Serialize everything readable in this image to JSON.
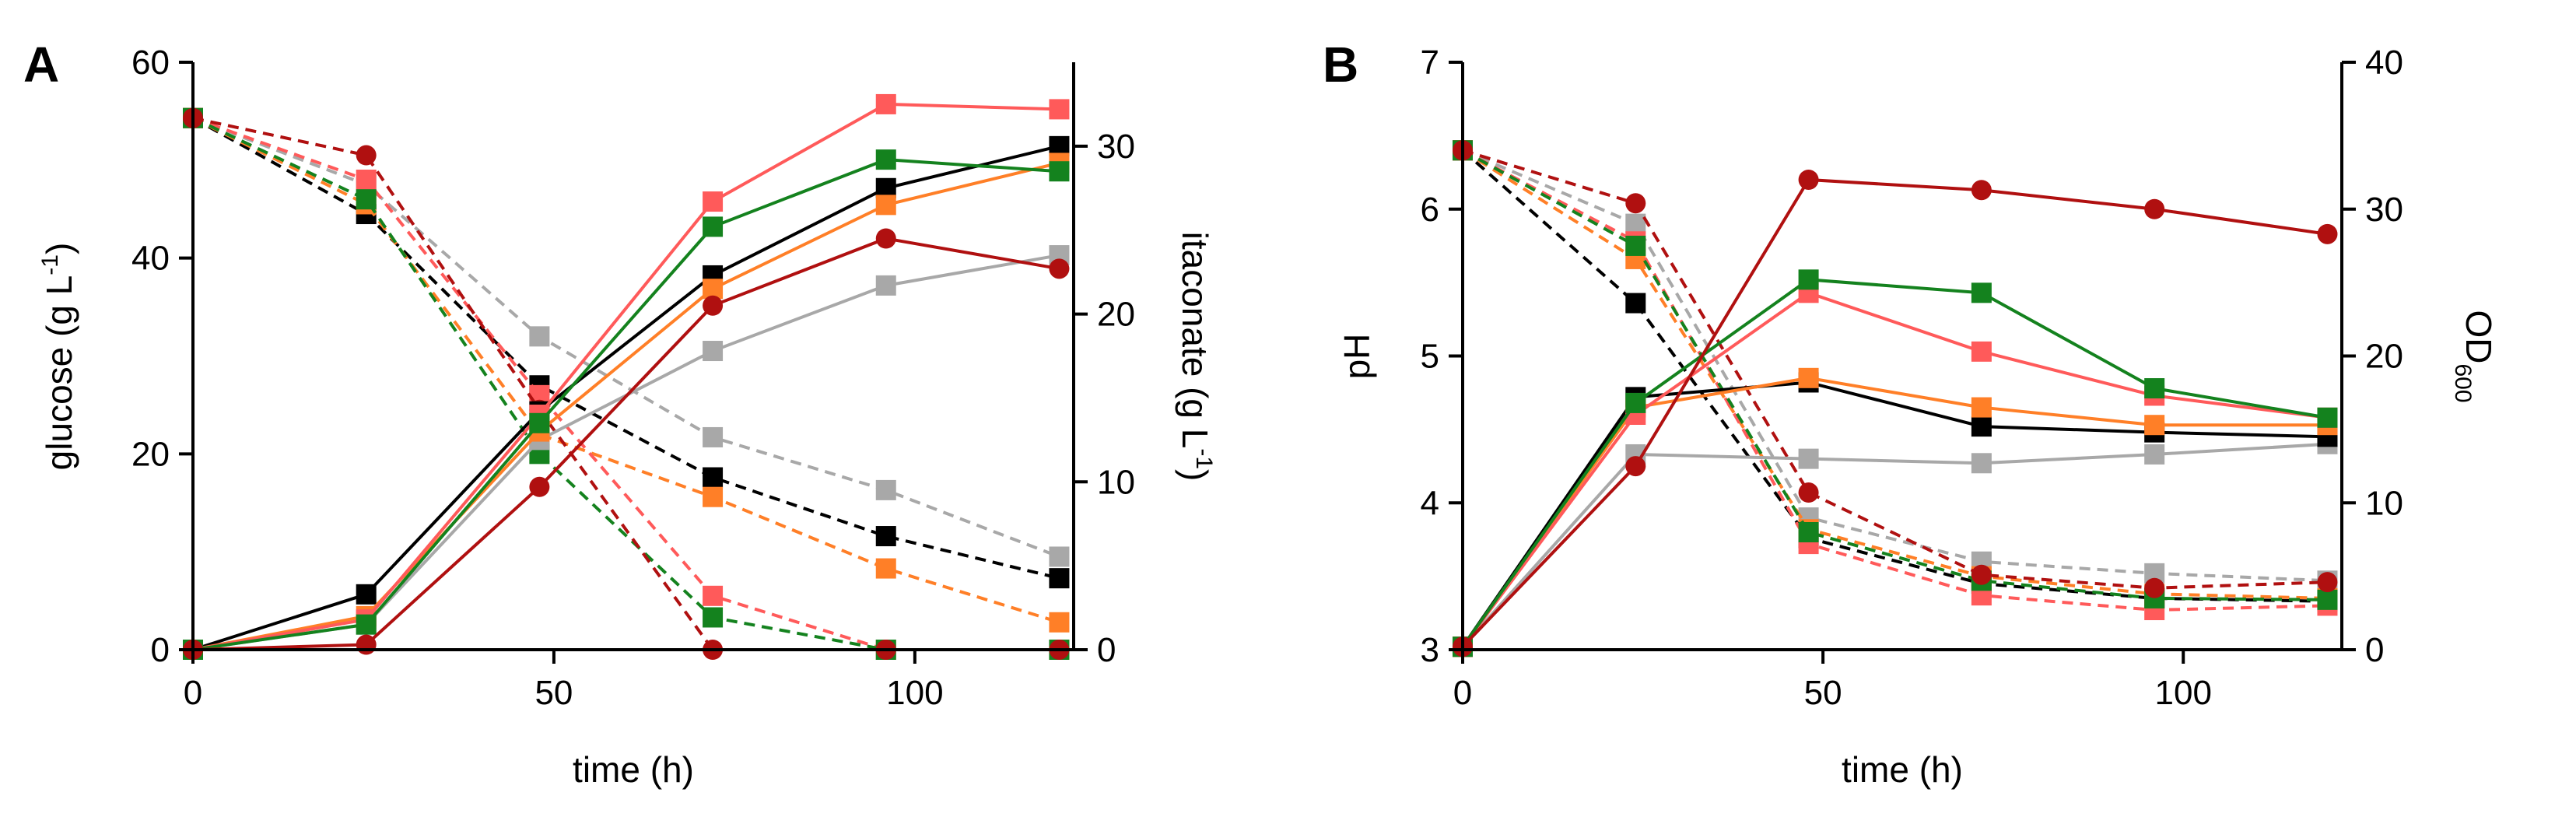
{
  "figure": {
    "colors": {
      "black": "#000000",
      "orange": "#ff7f27",
      "green": "#14821e",
      "lightred": "#ff5a5a",
      "darkred": "#b01010",
      "gray": "#a8a8a8"
    }
  },
  "chart_data": [
    {
      "type": "line",
      "panel_label": "A",
      "title": "",
      "xlabel": "time (h)",
      "ylabel_left": "glucose (g L",
      "ylabel_left_sup": "-1",
      "ylabel_left_end": ")",
      "ylabel_right": "itaconate (g L",
      "ylabel_right_sup": "-1",
      "ylabel_right_end": ")",
      "xlim": [
        0,
        122
      ],
      "ylim_left": [
        0,
        60
      ],
      "ylim_right": [
        0,
        35
      ],
      "xticks": [
        "0",
        "50",
        "100"
      ],
      "xtick_values": [
        0,
        50,
        100
      ],
      "yticks_left": [
        "0",
        "20",
        "40",
        "60"
      ],
      "ytick_left_values": [
        0,
        20,
        40,
        60
      ],
      "yticks_right": [
        "0",
        "10",
        "20",
        "30"
      ],
      "ytick_right_values": [
        0,
        10,
        20,
        30
      ],
      "x": [
        0,
        24,
        48,
        72,
        96,
        120
      ],
      "series": [
        {
          "name": "gray glucose",
          "color": "gray",
          "axis": "left",
          "dashed": true,
          "marker": "square",
          "values": [
            54.3,
            47.5,
            32,
            21.7,
            16.3,
            9.5
          ]
        },
        {
          "name": "black glucose",
          "color": "black",
          "axis": "left",
          "dashed": true,
          "marker": "square",
          "values": [
            54.3,
            44.5,
            27,
            17.6,
            11.6,
            7.3
          ]
        },
        {
          "name": "orange glucose",
          "color": "orange",
          "axis": "left",
          "dashed": true,
          "marker": "square",
          "values": [
            54.3,
            45.5,
            22,
            15.6,
            8.3,
            2.8
          ]
        },
        {
          "name": "lightred glucose",
          "color": "lightred",
          "axis": "left",
          "dashed": true,
          "marker": "square",
          "values": [
            54.3,
            48,
            26,
            5.5,
            0,
            0
          ]
        },
        {
          "name": "green glucose",
          "color": "green",
          "axis": "left",
          "dashed": true,
          "marker": "square",
          "values": [
            54.3,
            46,
            20,
            3.3,
            0,
            0
          ]
        },
        {
          "name": "darkred glucose",
          "color": "darkred",
          "axis": "left",
          "dashed": true,
          "marker": "circle",
          "values": [
            54.3,
            50.5,
            24.5,
            0,
            0,
            0
          ]
        },
        {
          "name": "gray itaconate",
          "color": "gray",
          "axis": "right",
          "dashed": false,
          "marker": "square",
          "values": [
            0,
            1.5,
            12.5,
            17.8,
            21.7,
            23.5
          ]
        },
        {
          "name": "black itaconate",
          "color": "black",
          "axis": "right",
          "dashed": false,
          "marker": "square",
          "values": [
            0,
            3.3,
            14.2,
            22.3,
            27.5,
            30
          ]
        },
        {
          "name": "orange itaconate",
          "color": "orange",
          "axis": "right",
          "dashed": false,
          "marker": "square",
          "values": [
            0,
            2,
            13,
            21.5,
            26.5,
            29
          ]
        },
        {
          "name": "lightred itaconate",
          "color": "lightred",
          "axis": "right",
          "dashed": false,
          "marker": "square",
          "values": [
            0,
            1.8,
            14,
            26.7,
            32.5,
            32.2
          ]
        },
        {
          "name": "green itaconate",
          "color": "green",
          "axis": "right",
          "dashed": false,
          "marker": "square",
          "values": [
            0,
            1.5,
            13.5,
            25.2,
            29.2,
            28.5
          ]
        },
        {
          "name": "darkred itaconate",
          "color": "darkred",
          "axis": "right",
          "dashed": false,
          "marker": "circle",
          "values": [
            0,
            0.3,
            9.7,
            20.5,
            24.5,
            22.7
          ]
        }
      ]
    },
    {
      "type": "line",
      "panel_label": "B",
      "title": "",
      "xlabel": "time (h)",
      "ylabel_left": "pH",
      "ylabel_right": "OD",
      "ylabel_right_sub": "600",
      "xlim": [
        0,
        122
      ],
      "ylim_left": [
        3,
        7
      ],
      "ylim_right": [
        0,
        40
      ],
      "xticks": [
        "0",
        "50",
        "100"
      ],
      "xtick_values": [
        0,
        50,
        100
      ],
      "yticks_left": [
        "3",
        "4",
        "5",
        "6",
        "7"
      ],
      "ytick_left_values": [
        3,
        4,
        5,
        6,
        7
      ],
      "yticks_right": [
        "0",
        "10",
        "20",
        "30",
        "40"
      ],
      "ytick_right_values": [
        0,
        10,
        20,
        30,
        40
      ],
      "x": [
        0,
        24,
        48,
        72,
        96,
        120
      ],
      "series": [
        {
          "name": "gray pH",
          "color": "gray",
          "axis": "left",
          "dashed": true,
          "marker": "square",
          "values": [
            6.4,
            5.9,
            3.9,
            3.6,
            3.52,
            3.47
          ]
        },
        {
          "name": "black pH",
          "color": "black",
          "axis": "left",
          "dashed": true,
          "marker": "square",
          "values": [
            6.4,
            5.36,
            3.76,
            3.45,
            3.35,
            3.33
          ]
        },
        {
          "name": "orange pH",
          "color": "orange",
          "axis": "left",
          "dashed": true,
          "marker": "square",
          "values": [
            6.4,
            5.66,
            3.82,
            3.5,
            3.38,
            3.35
          ]
        },
        {
          "name": "lightred pH",
          "color": "lightred",
          "axis": "left",
          "dashed": true,
          "marker": "square",
          "values": [
            6.4,
            5.78,
            3.72,
            3.37,
            3.27,
            3.3
          ]
        },
        {
          "name": "green pH",
          "color": "green",
          "axis": "left",
          "dashed": true,
          "marker": "square",
          "values": [
            6.4,
            5.75,
            3.8,
            3.47,
            3.35,
            3.34
          ]
        },
        {
          "name": "darkred pH",
          "color": "darkred",
          "axis": "left",
          "dashed": true,
          "marker": "circle",
          "values": [
            6.4,
            6.04,
            4.07,
            3.51,
            3.42,
            3.46
          ]
        },
        {
          "name": "gray OD600",
          "color": "gray",
          "axis": "right",
          "dashed": false,
          "marker": "square",
          "values": [
            0.2,
            13.3,
            13,
            12.7,
            13.3,
            14
          ]
        },
        {
          "name": "black OD600",
          "color": "black",
          "axis": "right",
          "dashed": false,
          "marker": "square",
          "values": [
            0.2,
            17.2,
            18.2,
            15.2,
            14.8,
            14.5
          ]
        },
        {
          "name": "orange OD600",
          "color": "orange",
          "axis": "right",
          "dashed": false,
          "marker": "square",
          "values": [
            0.2,
            16.5,
            18.5,
            16.5,
            15.3,
            15.3
          ]
        },
        {
          "name": "lightred OD600",
          "color": "lightred",
          "axis": "right",
          "dashed": false,
          "marker": "square",
          "values": [
            0.2,
            16,
            24.3,
            20.3,
            17.3,
            15.8
          ]
        },
        {
          "name": "green OD600",
          "color": "green",
          "axis": "right",
          "dashed": false,
          "marker": "square",
          "values": [
            0.2,
            16.8,
            25.2,
            24.3,
            17.8,
            15.8
          ]
        },
        {
          "name": "darkred OD600",
          "color": "darkred",
          "axis": "right",
          "dashed": false,
          "marker": "circle",
          "values": [
            0.2,
            12.5,
            32,
            31.3,
            30,
            28.3
          ]
        }
      ]
    }
  ]
}
